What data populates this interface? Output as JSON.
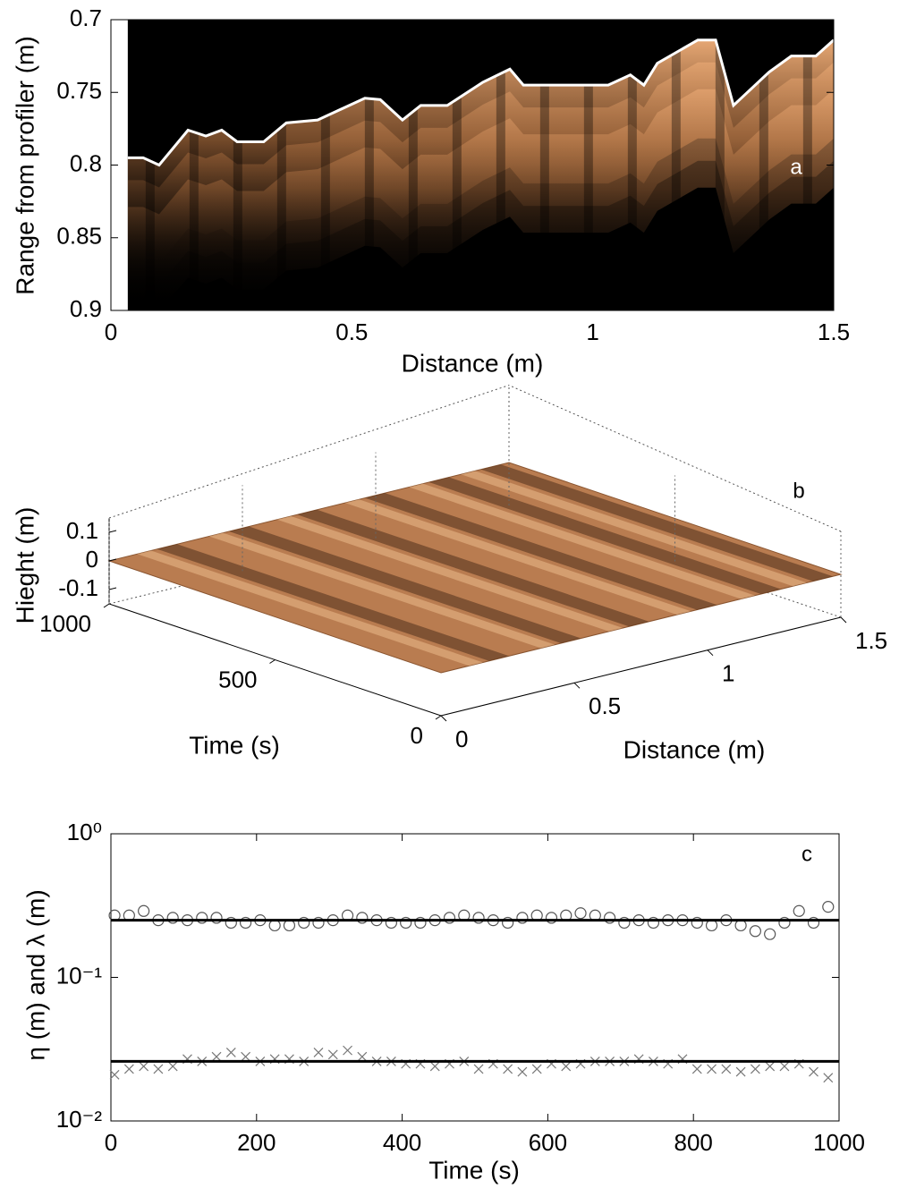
{
  "chart_data": [
    {
      "type": "image-profile",
      "label": "a",
      "xlabel": "Distance (m)",
      "ylabel": "Range from profiler (m)",
      "xlim": [
        0,
        1.5
      ],
      "ylim": [
        0.9,
        0.7
      ],
      "xticks": [
        0,
        0.5,
        1,
        1.5
      ],
      "yticks": [
        0.7,
        0.75,
        0.8,
        0.85,
        0.9
      ],
      "background": "#000000",
      "echo_color": "#f2b07a",
      "series": [
        {
          "color": "#ffffff",
          "x": [
            0.035,
            0.067,
            0.1,
            0.16,
            0.197,
            0.23,
            0.262,
            0.317,
            0.364,
            0.429,
            0.527,
            0.559,
            0.605,
            0.643,
            0.698,
            0.772,
            0.828,
            0.856,
            1.032,
            1.078,
            1.106,
            1.134,
            1.218,
            1.255,
            1.292,
            1.366,
            1.412,
            1.463,
            1.5
          ],
          "values": [
            0.795,
            0.795,
            0.8,
            0.776,
            0.78,
            0.776,
            0.784,
            0.784,
            0.771,
            0.769,
            0.754,
            0.755,
            0.769,
            0.759,
            0.759,
            0.743,
            0.734,
            0.745,
            0.745,
            0.738,
            0.745,
            0.73,
            0.714,
            0.714,
            0.759,
            0.736,
            0.725,
            0.725,
            0.714
          ]
        }
      ]
    },
    {
      "type": "surface3d",
      "label": "b",
      "xlabel": "Distance (m)",
      "ylabel": "Time (s)",
      "zlabel": "Hieght (m)",
      "xlim": [
        0,
        1.5
      ],
      "ylim": [
        0,
        1000
      ],
      "zlim": [
        -0.15,
        0.15
      ],
      "xticks": [
        0,
        0.5,
        1,
        1.5
      ],
      "yticks": [
        0,
        500,
        1000
      ],
      "zticks": [
        -0.1,
        0,
        0.1
      ],
      "color": "#b97c50"
    },
    {
      "type": "scatter",
      "label": "c",
      "xlabel": "Time (s)",
      "ylabel": "η (m) and λ (m)",
      "log_y": true,
      "xlim": [
        0,
        1000
      ],
      "ylim": [
        0.01,
        1
      ],
      "xticks": [
        0,
        200,
        400,
        600,
        800,
        1000
      ],
      "yticks": [
        {
          "value": 0.01,
          "label": "10⁻²"
        },
        {
          "value": 0.1,
          "label": "10⁻¹"
        },
        {
          "value": 1,
          "label": "10⁰"
        }
      ],
      "x": [
        5,
        25,
        45,
        65,
        85,
        105,
        125,
        145,
        165,
        185,
        205,
        225,
        245,
        265,
        285,
        305,
        325,
        345,
        365,
        385,
        405,
        425,
        445,
        465,
        485,
        505,
        525,
        545,
        565,
        585,
        605,
        625,
        645,
        665,
        685,
        705,
        725,
        745,
        765,
        785,
        805,
        825,
        845,
        865,
        885,
        905,
        925,
        945,
        965,
        985
      ],
      "series": [
        {
          "marker": "o",
          "color": "#555555",
          "values": [
            0.27,
            0.27,
            0.29,
            0.25,
            0.26,
            0.25,
            0.26,
            0.26,
            0.24,
            0.24,
            0.25,
            0.23,
            0.23,
            0.24,
            0.24,
            0.25,
            0.27,
            0.26,
            0.25,
            0.24,
            0.24,
            0.24,
            0.25,
            0.26,
            0.27,
            0.26,
            0.25,
            0.24,
            0.26,
            0.27,
            0.26,
            0.27,
            0.28,
            0.27,
            0.26,
            0.24,
            0.25,
            0.24,
            0.25,
            0.25,
            0.24,
            0.23,
            0.25,
            0.23,
            0.21,
            0.2,
            0.24,
            0.29,
            0.24,
            0.31
          ]
        },
        {
          "marker": "x",
          "color": "#777777",
          "values": [
            0.021,
            0.023,
            0.024,
            0.023,
            0.024,
            0.027,
            0.026,
            0.028,
            0.03,
            0.028,
            0.026,
            0.027,
            0.027,
            0.026,
            0.03,
            0.029,
            0.031,
            0.028,
            0.026,
            0.026,
            0.025,
            0.025,
            0.024,
            0.025,
            0.026,
            0.023,
            0.025,
            0.023,
            0.022,
            0.023,
            0.025,
            0.024,
            0.025,
            0.026,
            0.026,
            0.026,
            0.027,
            0.026,
            0.025,
            0.027,
            0.023,
            0.023,
            0.023,
            0.022,
            0.023,
            0.024,
            0.024,
            0.025,
            0.022,
            0.02
          ]
        },
        {
          "marker": "line",
          "color": "#000000",
          "x": [
            0,
            1000
          ],
          "values": [
            0.25,
            0.25
          ]
        },
        {
          "marker": "line",
          "color": "#000000",
          "x": [
            0,
            1000
          ],
          "values": [
            0.026,
            0.026
          ]
        }
      ]
    }
  ]
}
